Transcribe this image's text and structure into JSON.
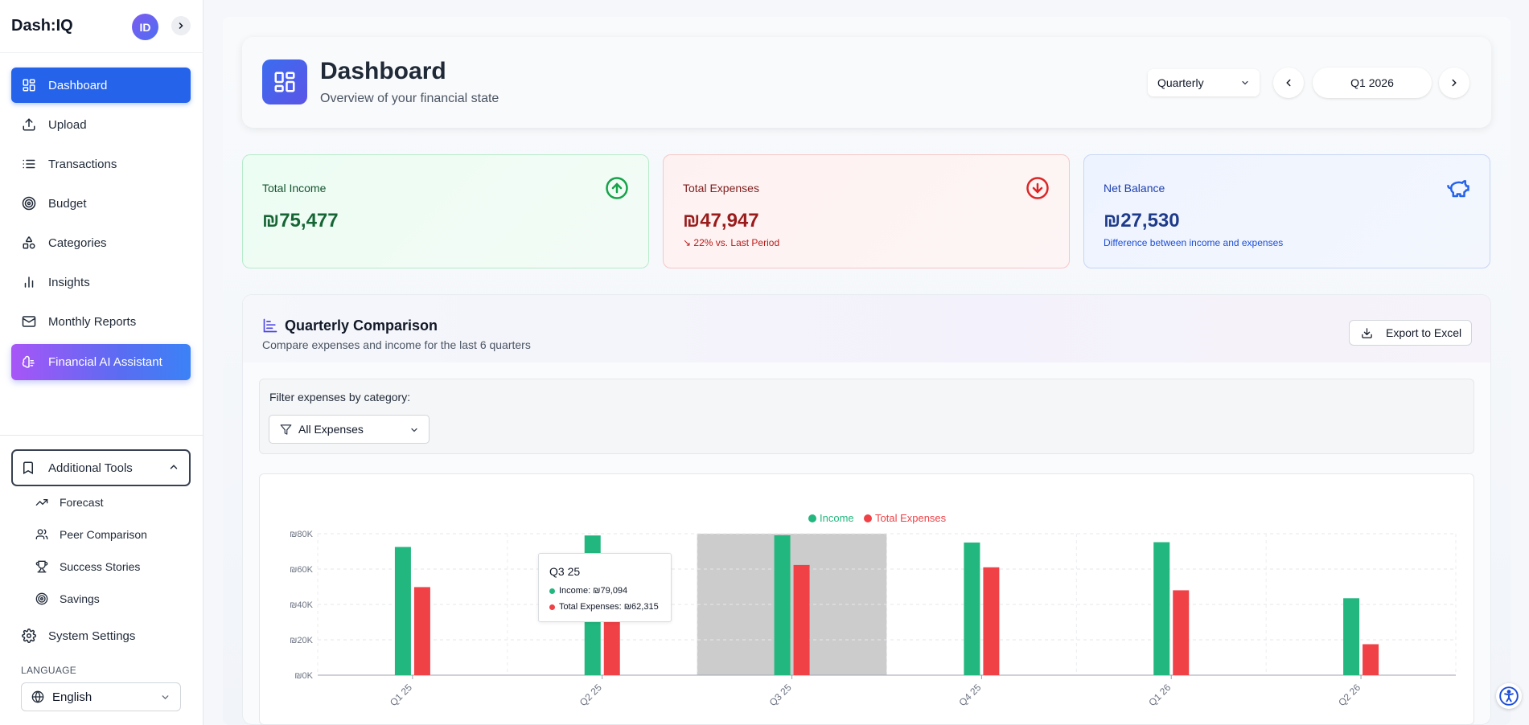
{
  "app": {
    "brand": "Dash:IQ",
    "avatar_initials": "ID"
  },
  "sidebar": {
    "items": [
      {
        "label": "Dashboard",
        "icon": "grid-icon"
      },
      {
        "label": "Upload",
        "icon": "upload-icon"
      },
      {
        "label": "Transactions",
        "icon": "list-icon"
      },
      {
        "label": "Budget",
        "icon": "target-icon"
      },
      {
        "label": "Categories",
        "icon": "shapes-icon"
      },
      {
        "label": "Insights",
        "icon": "bar-chart-icon"
      },
      {
        "label": "Monthly Reports",
        "icon": "mail-icon"
      },
      {
        "label": "Financial AI Assistant",
        "icon": "brain-icon"
      }
    ],
    "tools_label": "Additional Tools",
    "tools": [
      {
        "label": "Forecast",
        "icon": "trending-up-icon"
      },
      {
        "label": "Peer Comparison",
        "icon": "users-icon"
      },
      {
        "label": "Success Stories",
        "icon": "trophy-icon"
      },
      {
        "label": "Savings",
        "icon": "target-icon"
      }
    ],
    "settings_label": "System Settings",
    "language_label": "LANGUAGE",
    "language_value": "English"
  },
  "header": {
    "title": "Dashboard",
    "subtitle": "Overview of your financial state",
    "period_type": "Quarterly",
    "period": "Q1 2026"
  },
  "stats": {
    "income": {
      "label": "Total Income",
      "value": "₪75,477"
    },
    "expenses": {
      "label": "Total Expenses",
      "value": "₪47,947",
      "note": "22% vs. Last Period"
    },
    "balance": {
      "label": "Net Balance",
      "value": "₪27,530",
      "note": "Difference between income and expenses"
    }
  },
  "comparison": {
    "title": "Quarterly Comparison",
    "subtitle": "Compare expenses and income for the last 6 quarters",
    "export_label": "Export to Excel",
    "filter_label": "Filter expenses by category:",
    "filter_value": "All Expenses"
  },
  "tooltip": {
    "title": "Q3 25",
    "income": "Income: ₪79,094",
    "expenses": "Total Expenses: ₪62,315"
  },
  "colors": {
    "income": "#22b77e",
    "expenses": "#ef4146",
    "primary": "#2563eb"
  },
  "chart_data": {
    "type": "bar",
    "categories": [
      "Q1 25",
      "Q2 25",
      "Q3 25",
      "Q4 25",
      "Q1 26",
      "Q2 26"
    ],
    "series": [
      {
        "name": "Income",
        "values": [
          72500,
          79000,
          79094,
          75000,
          75200,
          43500
        ]
      },
      {
        "name": "Total Expenses",
        "values": [
          49800,
          41500,
          62315,
          61000,
          48000,
          17500
        ]
      }
    ],
    "y_ticks": [
      "₪0K",
      "₪20K",
      "₪40K",
      "₪60K",
      "₪80K"
    ],
    "ylim": [
      0,
      80000
    ],
    "highlighted_category": "Q3 25",
    "legend": "top-center",
    "grid": true
  }
}
